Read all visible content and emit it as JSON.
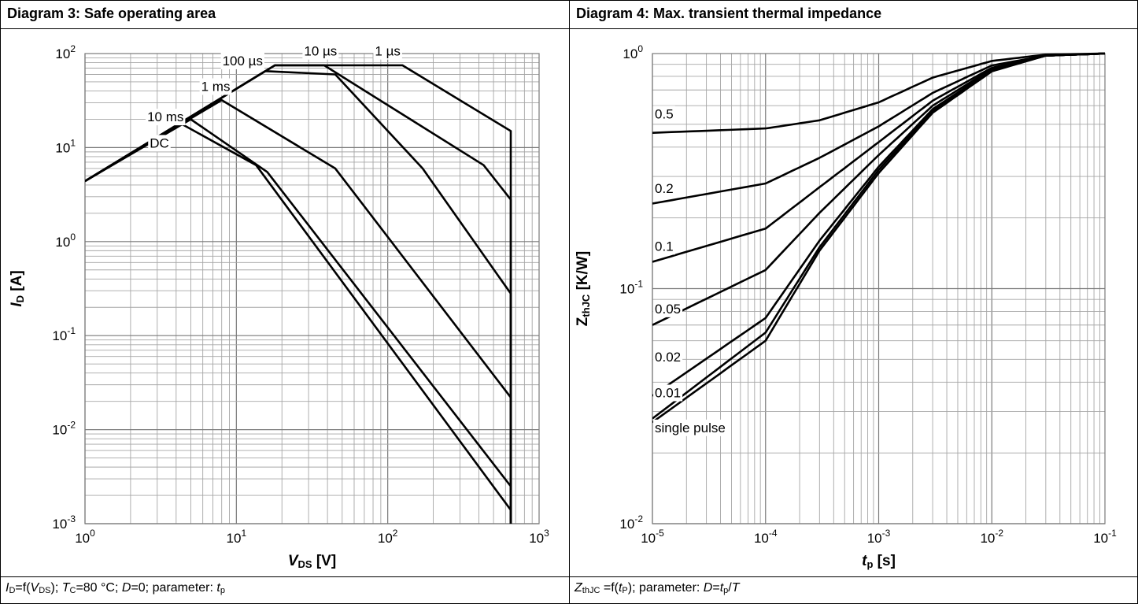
{
  "left_panel": {
    "title": "Diagram 3: Safe operating area",
    "caption": {
      "p1": "I",
      "p1_sub": "D",
      "p2": "=f(",
      "p3": "V",
      "p3_sub": "DS",
      "p4": "); ",
      "p5": "T",
      "p5_sub": "C",
      "p6": "=80 °C; ",
      "p7": "D",
      "p8": "=0; parameter: ",
      "p9": "t",
      "p9_sub": "p"
    }
  },
  "right_panel": {
    "title": "Diagram 4: Max. transient thermal impedance",
    "caption": {
      "p1": "Z",
      "p1_sub": "thJC",
      "p2": " =f(",
      "p3": "t",
      "p3_sub": "P",
      "p4": "); parameter: ",
      "p5": "D",
      "p6": "=",
      "p7": "t",
      "p7_sub": "p",
      "p8": "/",
      "p9": "T"
    }
  },
  "chart_data": [
    {
      "type": "line",
      "title": "Diagram 3: Safe operating area",
      "xlabel": "VDS [V]",
      "xlabel_parts": {
        "main": "V",
        "sub": "DS",
        "unit": " [V]"
      },
      "ylabel": "ID [A]",
      "ylabel_parts": {
        "main": "I",
        "sub": "D",
        "unit": " [A]"
      },
      "x_scale": "log",
      "y_scale": "log",
      "xlim": [
        1,
        1000
      ],
      "ylim": [
        0.001,
        100
      ],
      "grid": true,
      "x_tick_labels": [
        {
          "base": "10",
          "exp": "0"
        },
        {
          "base": "10",
          "exp": "1"
        },
        {
          "base": "10",
          "exp": "2"
        },
        {
          "base": "10",
          "exp": "3"
        }
      ],
      "y_tick_labels": [
        {
          "base": "10",
          "exp": "-3"
        },
        {
          "base": "10",
          "exp": "-2"
        },
        {
          "base": "10",
          "exp": "-1"
        },
        {
          "base": "10",
          "exp": "0"
        },
        {
          "base": "10",
          "exp": "1"
        },
        {
          "base": "10",
          "exp": "2"
        }
      ],
      "series": [
        {
          "name": "1 µs",
          "x": [
            1,
            18,
            125,
            650,
            650
          ],
          "y": [
            4.4,
            75,
            75,
            15,
            0.001
          ]
        },
        {
          "name": "10 µs",
          "x": [
            1,
            18,
            38,
            430,
            650,
            650
          ],
          "y": [
            4.4,
            75,
            75,
            6.5,
            2.8,
            0.001
          ]
        },
        {
          "name": "100 µs",
          "x": [
            1,
            15.5,
            45,
            170,
            650,
            650
          ],
          "y": [
            4.4,
            65,
            60,
            6,
            0.28,
            0.001
          ]
        },
        {
          "name": "1 ms",
          "x": [
            1,
            8,
            45,
            650,
            650
          ],
          "y": [
            4.4,
            32,
            6,
            0.022,
            0.001
          ]
        },
        {
          "name": "10 ms",
          "x": [
            1,
            5,
            16,
            650,
            650
          ],
          "y": [
            4.4,
            20,
            5.5,
            0.0025,
            0.001
          ]
        },
        {
          "name": "DC",
          "x": [
            1,
            4.3,
            13.5,
            650,
            650
          ],
          "y": [
            4.4,
            18,
            6.5,
            0.0014,
            0.001
          ]
        }
      ],
      "annotations": [
        {
          "text": "10 µs",
          "x": 36,
          "y": 95
        },
        {
          "text": "1 µs",
          "x": 100,
          "y": 95
        },
        {
          "text": "100 µs",
          "x": 11,
          "y": 75
        },
        {
          "text": "1 ms",
          "x": 7.3,
          "y": 40
        },
        {
          "text": "10 ms",
          "x": 3.4,
          "y": 19
        },
        {
          "text": "DC",
          "x": 3.1,
          "y": 10
        }
      ]
    },
    {
      "type": "line",
      "title": "Diagram 4: Max. transient thermal impedance",
      "xlabel": "tp [s]",
      "xlabel_parts": {
        "main": "t",
        "sub": "p",
        "unit": " [s]"
      },
      "ylabel": "ZthJC [K/W]",
      "ylabel_parts": {
        "main": "Z",
        "sub": "thJC",
        "unit": " [K/W]"
      },
      "x_scale": "log",
      "y_scale": "log",
      "xlim": [
        1e-05,
        0.1
      ],
      "ylim": [
        0.01,
        1
      ],
      "grid": true,
      "x_tick_labels": [
        {
          "base": "10",
          "exp": "-5"
        },
        {
          "base": "10",
          "exp": "-4"
        },
        {
          "base": "10",
          "exp": "-3"
        },
        {
          "base": "10",
          "exp": "-2"
        },
        {
          "base": "10",
          "exp": "-1"
        }
      ],
      "y_tick_labels": [
        {
          "base": "10",
          "exp": "-2"
        },
        {
          "base": "10",
          "exp": "-1"
        },
        {
          "base": "10",
          "exp": "0"
        }
      ],
      "series": [
        {
          "name": "0.5",
          "x": [
            1e-05,
            0.0001,
            0.0003,
            0.001,
            0.003,
            0.01,
            0.03,
            0.1
          ],
          "y": [
            0.46,
            0.48,
            0.52,
            0.62,
            0.79,
            0.93,
            0.99,
            1.0
          ]
        },
        {
          "name": "0.2",
          "x": [
            1e-05,
            0.0001,
            0.0003,
            0.001,
            0.003,
            0.01,
            0.03,
            0.1
          ],
          "y": [
            0.23,
            0.28,
            0.36,
            0.49,
            0.68,
            0.89,
            0.98,
            1.0
          ]
        },
        {
          "name": "0.1",
          "x": [
            1e-05,
            0.0001,
            0.0003,
            0.001,
            0.003,
            0.01,
            0.03,
            0.1
          ],
          "y": [
            0.13,
            0.18,
            0.27,
            0.42,
            0.63,
            0.87,
            0.98,
            1.0
          ]
        },
        {
          "name": "0.05",
          "x": [
            1e-05,
            0.0001,
            0.0003,
            0.001,
            0.003,
            0.01,
            0.03,
            0.1
          ],
          "y": [
            0.07,
            0.12,
            0.21,
            0.37,
            0.6,
            0.86,
            0.98,
            1.0
          ]
        },
        {
          "name": "0.02",
          "x": [
            1e-05,
            0.0001,
            0.0003,
            0.001,
            0.003,
            0.01,
            0.03,
            0.1
          ],
          "y": [
            0.035,
            0.075,
            0.16,
            0.33,
            0.58,
            0.85,
            0.98,
            1.0
          ]
        },
        {
          "name": "0.01",
          "x": [
            1e-05,
            0.0001,
            0.0003,
            0.001,
            0.003,
            0.01,
            0.03,
            0.1
          ],
          "y": [
            0.028,
            0.065,
            0.15,
            0.32,
            0.57,
            0.85,
            0.98,
            1.0
          ]
        },
        {
          "name": "single pulse",
          "x": [
            1e-05,
            0.0001,
            0.0003,
            0.001,
            0.003,
            0.01,
            0.03,
            0.1
          ],
          "y": [
            0.027,
            0.06,
            0.145,
            0.31,
            0.56,
            0.84,
            0.98,
            1.0
          ]
        }
      ],
      "annotations": [
        {
          "text": "0.5",
          "x": 1.05e-05,
          "y": 0.53
        },
        {
          "text": "0.2",
          "x": 1.05e-05,
          "y": 0.255
        },
        {
          "text": "0.1",
          "x": 1.05e-05,
          "y": 0.145
        },
        {
          "text": "0.05",
          "x": 1.05e-05,
          "y": 0.0785
        },
        {
          "text": "0.02",
          "x": 1.05e-05,
          "y": 0.049
        },
        {
          "text": "0.01",
          "x": 1.05e-05,
          "y": 0.0345
        },
        {
          "text": "single pulse",
          "x": 1.05e-05,
          "y": 0.0245
        }
      ]
    }
  ]
}
